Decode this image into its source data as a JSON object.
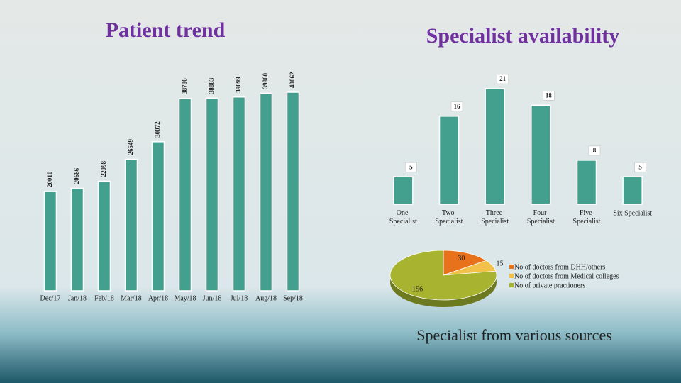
{
  "chart_data": [
    {
      "type": "bar",
      "title": "Patient trend",
      "categories": [
        "Dec/17",
        "Jan/18",
        "Feb/18",
        "Mar/18",
        "Apr/18",
        "May/18",
        "Jun/18",
        "Jul/18",
        "Aug/18",
        "Sep/18"
      ],
      "values": [
        20010,
        20686,
        22098,
        26549,
        30072,
        38786,
        38883,
        39099,
        39860,
        40062
      ],
      "color": "#43a08f"
    },
    {
      "type": "bar",
      "title": "Specialist availability",
      "categories": [
        "One Specialist",
        "Two Specialist",
        "Three Specialist",
        "Four Specialist",
        "Five Specialist",
        "Six Specialist"
      ],
      "values": [
        5,
        16,
        21,
        18,
        8,
        5
      ],
      "color": "#43a08f"
    },
    {
      "type": "pie",
      "title": "Specialist from various sources",
      "categories": [
        "No of doctors from DHH/others",
        "No of doctors from Medical colleges",
        "No of private practioners"
      ],
      "values": [
        30,
        15,
        156
      ],
      "colors": [
        "#e8711c",
        "#f2c14a",
        "#a8b330"
      ]
    }
  ]
}
